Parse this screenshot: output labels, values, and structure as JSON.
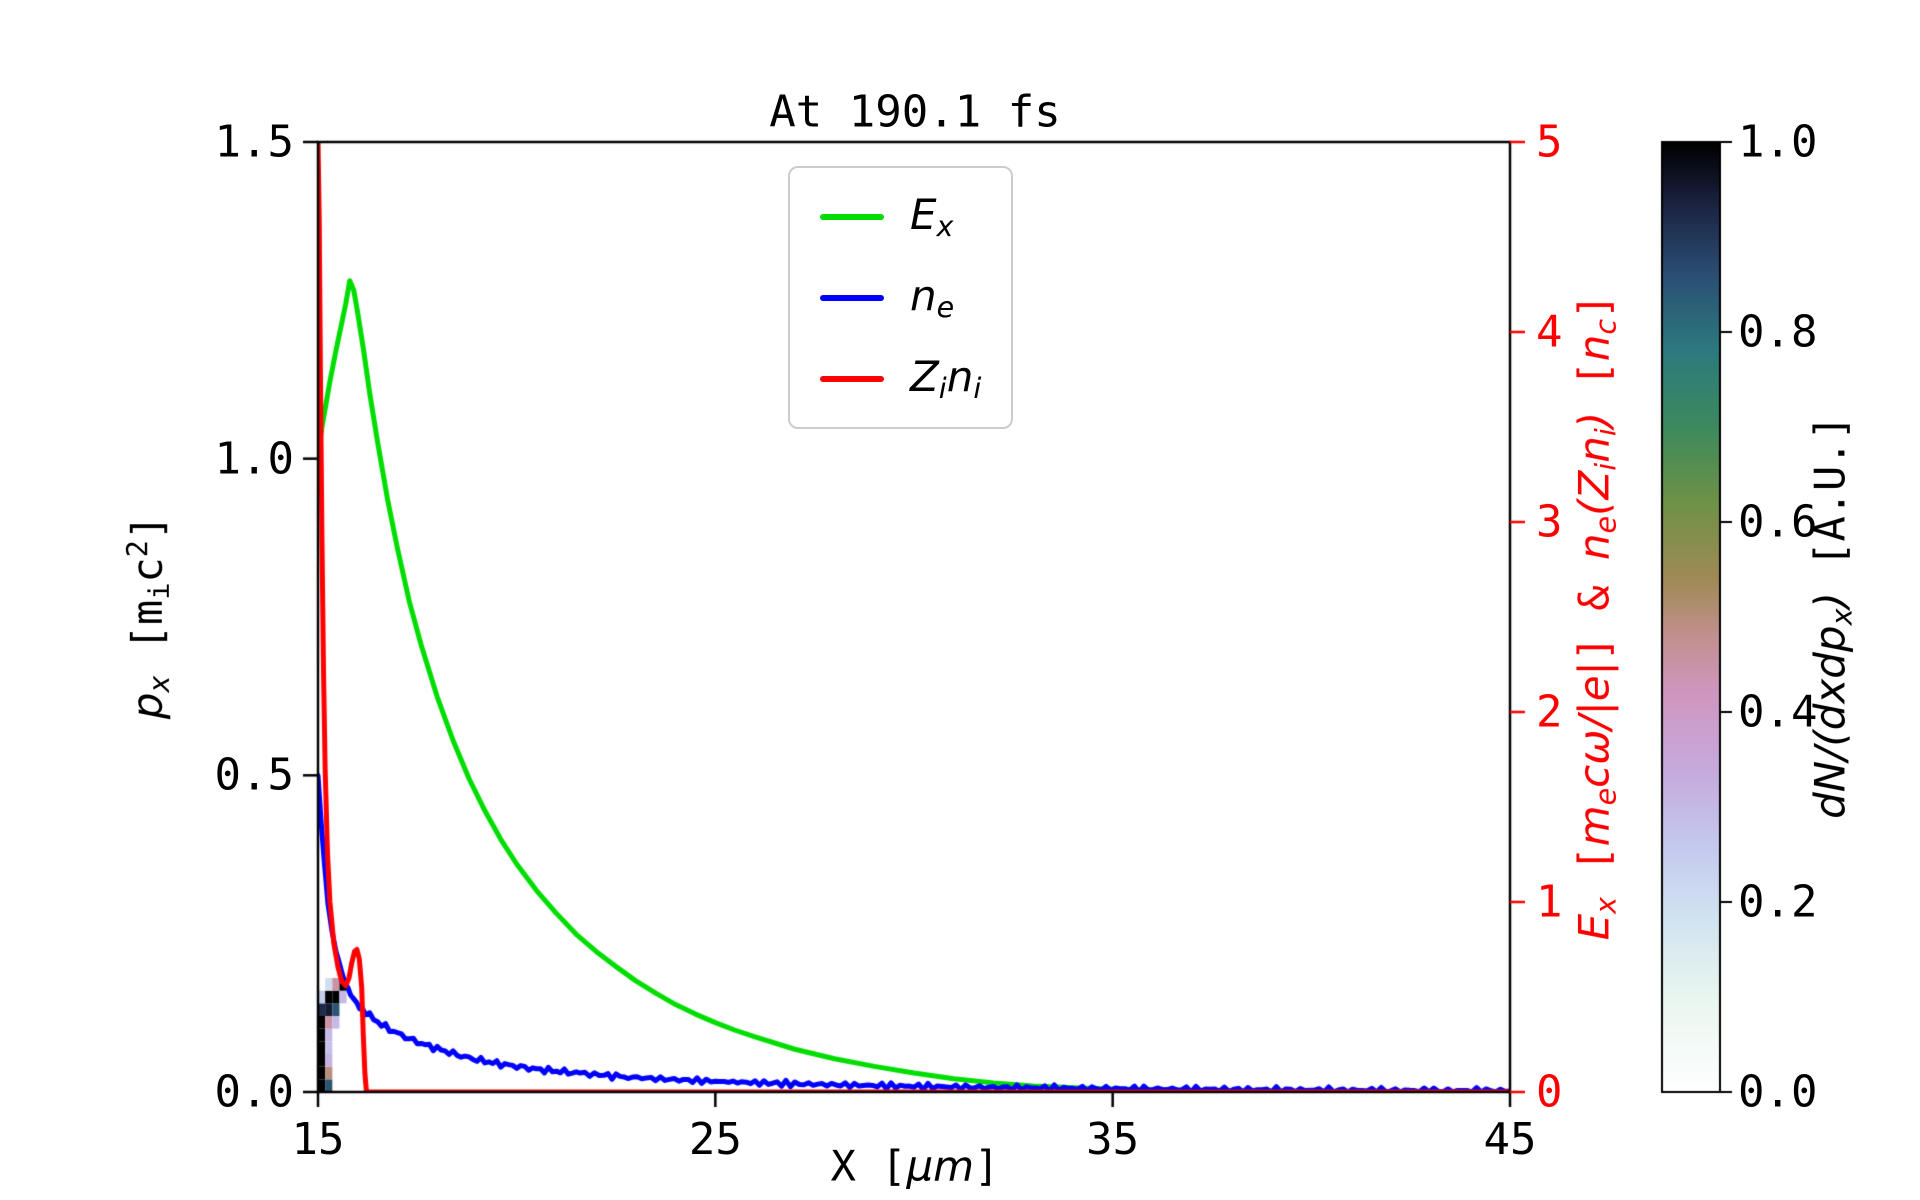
{
  "title": "At 190.1 fs",
  "axes": {
    "x": {
      "label_text": "X [μm]",
      "label_parts": [
        {
          "t": "X [",
          "f": "mono"
        },
        {
          "t": "μm",
          "f": "math"
        },
        {
          "t": "]",
          "f": "mono"
        }
      ],
      "ticks": [
        "15",
        "25",
        "35",
        "45"
      ],
      "tick_values": [
        15,
        25,
        35,
        45
      ],
      "range": [
        15,
        45
      ]
    },
    "y_left": {
      "label_text": "p_x [m_i c^2]",
      "label_parts": [
        {
          "t": "p",
          "f": "math"
        },
        {
          "t": "x",
          "f": "math",
          "pos": "sub"
        },
        {
          "t": " [m",
          "f": "mono"
        },
        {
          "t": "i",
          "f": "mono",
          "pos": "sub"
        },
        {
          "t": "c",
          "f": "mono"
        },
        {
          "t": "2",
          "f": "mono",
          "pos": "sup"
        },
        {
          "t": "]",
          "f": "mono"
        }
      ],
      "ticks": [
        "0.0",
        "0.5",
        "1.0",
        "1.5"
      ],
      "tick_values": [
        0,
        0.5,
        1.0,
        1.5
      ],
      "range": [
        0,
        1.5
      ],
      "color": "#000000"
    },
    "y_right": {
      "label_text": "E_x [m_e cω/|e|] & n_e(Z_i n_i) [n_c]",
      "label_parts": [
        {
          "t": "E",
          "f": "math"
        },
        {
          "t": "x",
          "f": "math",
          "pos": "sub"
        },
        {
          "t": " [",
          "f": "mono"
        },
        {
          "t": "m",
          "f": "math"
        },
        {
          "t": "e",
          "f": "math",
          "pos": "sub"
        },
        {
          "t": "cω/|e|",
          "f": "math"
        },
        {
          "t": "] & ",
          "f": "mono"
        },
        {
          "t": "n",
          "f": "math"
        },
        {
          "t": "e",
          "f": "math",
          "pos": "sub"
        },
        {
          "t": "(",
          "f": "math"
        },
        {
          "t": "Z",
          "f": "math"
        },
        {
          "t": "i",
          "f": "math",
          "pos": "sub"
        },
        {
          "t": "n",
          "f": "math"
        },
        {
          "t": "i",
          "f": "math",
          "pos": "sub"
        },
        {
          "t": ")",
          "f": "math"
        },
        {
          "t": " [",
          "f": "mono"
        },
        {
          "t": "n",
          "f": "math"
        },
        {
          "t": "c",
          "f": "math",
          "pos": "sub"
        },
        {
          "t": "]",
          "f": "mono"
        }
      ],
      "ticks": [
        "0",
        "1",
        "2",
        "3",
        "4",
        "5"
      ],
      "tick_values": [
        0,
        1,
        2,
        3,
        4,
        5
      ],
      "range": [
        0,
        5
      ],
      "color": "#ff0000"
    }
  },
  "legend": {
    "items": [
      {
        "key": "Ex",
        "color": "#00dd00",
        "label_text": "E_x",
        "label_parts": [
          {
            "t": "E",
            "f": "math"
          },
          {
            "t": "x",
            "f": "math",
            "pos": "sub"
          }
        ]
      },
      {
        "key": "ne",
        "color": "#0000ff",
        "label_text": "n_e",
        "label_parts": [
          {
            "t": "n",
            "f": "math"
          },
          {
            "t": "e",
            "f": "math",
            "pos": "sub"
          }
        ]
      },
      {
        "key": "Zini",
        "color": "#ff0000",
        "label_text": "Z_i n_i",
        "label_parts": [
          {
            "t": "Z",
            "f": "math"
          },
          {
            "t": "i",
            "f": "math",
            "pos": "sub"
          },
          {
            "t": "n",
            "f": "math"
          },
          {
            "t": "i",
            "f": "math",
            "pos": "sub"
          }
        ]
      }
    ]
  },
  "colorbar": {
    "label_text": "dN/(dxdp_x) [A.U.]",
    "label_parts": [
      {
        "t": "dN/(dxdp",
        "f": "math"
      },
      {
        "t": "x",
        "f": "math",
        "pos": "sub"
      },
      {
        "t": ")",
        "f": "math"
      },
      {
        "t": " [A.U.]",
        "f": "mono"
      }
    ],
    "ticks": [
      "0.0",
      "0.2",
      "0.4",
      "0.6",
      "0.8",
      "1.0"
    ],
    "tick_values": [
      0,
      0.2,
      0.4,
      0.6,
      0.8,
      1.0
    ],
    "range": [
      0,
      1
    ],
    "stops": [
      [
        0.0,
        "#ffffff"
      ],
      [
        0.1,
        "#e9f6ef"
      ],
      [
        0.18,
        "#d2e4f0"
      ],
      [
        0.26,
        "#c4c9ee"
      ],
      [
        0.34,
        "#c7a9dd"
      ],
      [
        0.42,
        "#cf97c0"
      ],
      [
        0.48,
        "#c2908f"
      ],
      [
        0.54,
        "#a08a55"
      ],
      [
        0.62,
        "#6f9247"
      ],
      [
        0.7,
        "#3d8a5e"
      ],
      [
        0.78,
        "#2d7a7e"
      ],
      [
        0.86,
        "#2b4f74"
      ],
      [
        0.93,
        "#1c2544"
      ],
      [
        1.0,
        "#000000"
      ]
    ]
  },
  "chart_data": {
    "type": "line",
    "title": "At 190.1 fs",
    "xlabel": "X [μm]",
    "xlim": [
      15,
      45
    ],
    "ylabel_left": "p_x [m_i c^2]",
    "ylim_left": [
      0,
      1.5
    ],
    "ylabel_right": "E_x [m_e cω/|e|] & n_e(Z_i n_i) [n_c]",
    "ylim_right": [
      0,
      5
    ],
    "grid": false,
    "legend_position": "upper center",
    "series": [
      {
        "name": "E_x",
        "axis": "right",
        "color": "#00dd00",
        "x": [
          15.0,
          15.1,
          15.2,
          15.3,
          15.45,
          15.6,
          15.7,
          15.8,
          15.9,
          16.0,
          16.15,
          16.3,
          16.5,
          16.75,
          17.0,
          17.3,
          17.6,
          18.0,
          18.4,
          18.8,
          19.2,
          19.6,
          20.0,
          20.5,
          21.0,
          21.5,
          22.0,
          22.5,
          23.0,
          23.5,
          24.0,
          24.5,
          25.0,
          25.5,
          26.0,
          27.0,
          28.0,
          29.0,
          30.0,
          31.0,
          32.0,
          33.0,
          34.5,
          36.0,
          38.0,
          41.0,
          45.0
        ],
        "y": [
          3.35,
          3.5,
          3.62,
          3.74,
          3.9,
          4.05,
          4.15,
          4.27,
          4.22,
          4.1,
          3.9,
          3.68,
          3.42,
          3.12,
          2.86,
          2.58,
          2.35,
          2.08,
          1.85,
          1.65,
          1.48,
          1.33,
          1.2,
          1.06,
          0.94,
          0.83,
          0.74,
          0.66,
          0.585,
          0.52,
          0.46,
          0.41,
          0.365,
          0.325,
          0.29,
          0.225,
          0.175,
          0.135,
          0.1,
          0.07,
          0.048,
          0.032,
          0.018,
          0.01,
          0.005,
          0.002,
          0.0
        ]
      },
      {
        "name": "n_e",
        "axis": "right",
        "color": "#0000ff",
        "noise": 0.018,
        "x": [
          15.0,
          15.08,
          15.16,
          15.25,
          15.35,
          15.45,
          15.6,
          15.75,
          15.9,
          16.05,
          16.2,
          16.4,
          16.6,
          16.8,
          17.0,
          17.3,
          17.6,
          17.9,
          18.2,
          18.6,
          19.0,
          19.5,
          20.0,
          20.5,
          21.0,
          21.6,
          22.2,
          22.8,
          23.5,
          24.2,
          25.0,
          26.0,
          27.0,
          28.5,
          30.0,
          32.0,
          34.0,
          36.5,
          39.0,
          42.0,
          45.0
        ],
        "y": [
          1.65,
          1.42,
          1.2,
          1.0,
          0.85,
          0.74,
          0.62,
          0.54,
          0.49,
          0.45,
          0.42,
          0.385,
          0.355,
          0.33,
          0.31,
          0.28,
          0.255,
          0.235,
          0.215,
          0.19,
          0.17,
          0.15,
          0.135,
          0.12,
          0.11,
          0.098,
          0.088,
          0.079,
          0.07,
          0.063,
          0.056,
          0.049,
          0.043,
          0.036,
          0.03,
          0.024,
          0.019,
          0.015,
          0.011,
          0.008,
          0.006
        ]
      },
      {
        "name": "Z_i n_i",
        "axis": "right",
        "color": "#ff0000",
        "x": [
          15.0,
          15.03,
          15.06,
          15.1,
          15.14,
          15.18,
          15.24,
          15.3,
          15.4,
          15.5,
          15.6,
          15.7,
          15.78,
          15.85,
          15.92,
          15.98,
          16.04,
          16.1,
          16.14,
          16.18,
          16.22,
          16.3,
          17.0,
          20.0,
          30.0,
          45.0
        ],
        "y": [
          5.0,
          4.6,
          3.8,
          2.9,
          2.2,
          1.7,
          1.25,
          1.0,
          0.78,
          0.66,
          0.58,
          0.56,
          0.6,
          0.68,
          0.74,
          0.75,
          0.7,
          0.55,
          0.3,
          0.1,
          0.0,
          0.0,
          0.0,
          0.0,
          0.0,
          0.0
        ]
      }
    ],
    "heatmap": {
      "name": "dN/(dxdp_x)",
      "axis": "left",
      "units": "A.U.",
      "value_range": [
        0,
        1
      ],
      "cell_w": 0.18,
      "cell_h": 0.02,
      "cells": [
        [
          15.0,
          0.0,
          1.0
        ],
        [
          15.0,
          0.02,
          1.0
        ],
        [
          15.0,
          0.04,
          1.0
        ],
        [
          15.0,
          0.06,
          1.0
        ],
        [
          15.0,
          0.08,
          1.0
        ],
        [
          15.0,
          0.1,
          1.0
        ],
        [
          15.0,
          0.12,
          0.92
        ],
        [
          15.0,
          0.14,
          0.25
        ],
        [
          15.18,
          0.0,
          0.85
        ],
        [
          15.18,
          0.02,
          0.5
        ],
        [
          15.18,
          0.04,
          0.32
        ],
        [
          15.18,
          0.06,
          0.28
        ],
        [
          15.18,
          0.08,
          0.3
        ],
        [
          15.18,
          0.1,
          0.45
        ],
        [
          15.18,
          0.12,
          0.95
        ],
        [
          15.18,
          0.14,
          1.0
        ],
        [
          15.18,
          0.16,
          0.2
        ],
        [
          15.36,
          0.1,
          0.3
        ],
        [
          15.36,
          0.12,
          0.85
        ],
        [
          15.36,
          0.14,
          1.0
        ],
        [
          15.36,
          0.16,
          0.45
        ],
        [
          15.54,
          0.14,
          0.3
        ],
        [
          15.54,
          0.16,
          1.0
        ]
      ]
    }
  }
}
